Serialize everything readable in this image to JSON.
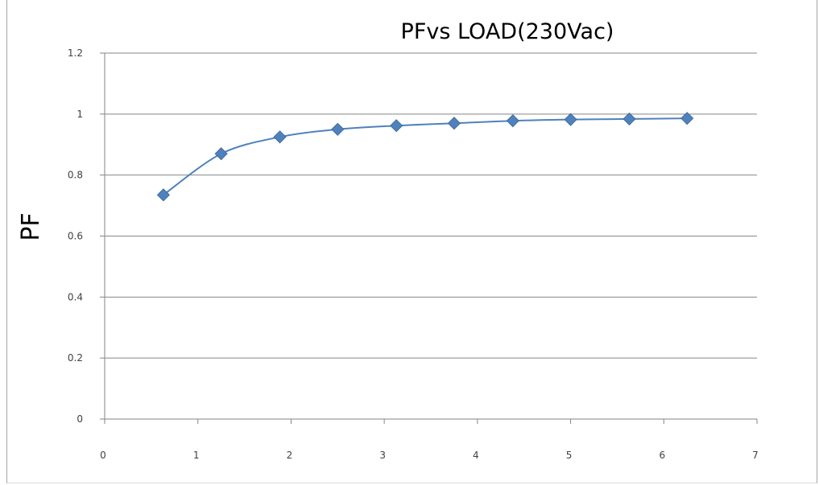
{
  "chart_data": {
    "type": "scatter",
    "title": "PFvs LOAD(230Vac)",
    "xlabel": "",
    "ylabel": "PF",
    "xlim": [
      0,
      7
    ],
    "ylim": [
      0,
      1.2
    ],
    "x_ticks": [
      "0",
      "1",
      "2",
      "3",
      "4",
      "5",
      "6",
      "7"
    ],
    "y_ticks": [
      "0",
      "0.2",
      "0.4",
      "0.6",
      "0.8",
      "1",
      "1.2"
    ],
    "grid": "horizontal",
    "legend": "none",
    "line_style": "smooth",
    "marker": "diamond",
    "series": [
      {
        "x": [
          0.63,
          1.25,
          1.88,
          2.5,
          3.13,
          3.75,
          4.38,
          5.0,
          5.63,
          6.25
        ],
        "y": [
          0.735,
          0.87,
          0.925,
          0.95,
          0.962,
          0.97,
          0.978,
          0.982,
          0.984,
          0.986
        ],
        "color": "#4f81bd"
      }
    ]
  }
}
